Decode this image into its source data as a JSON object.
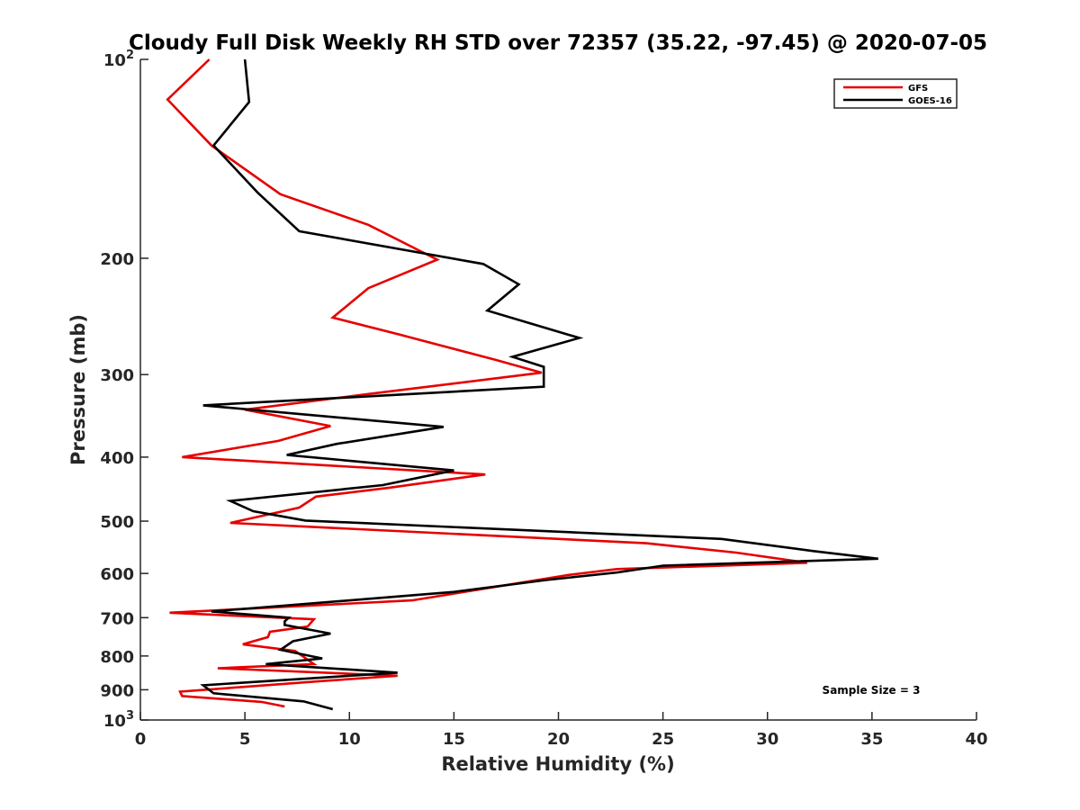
{
  "chart_data": {
    "type": "line",
    "title": "Cloudy Full Disk Weekly RH STD over 72357 (35.22, -97.45) @ 2020-07-05",
    "xlabel": "Relative Humidity (%)",
    "ylabel": "Pressure (mb)",
    "xlim": [
      0,
      40
    ],
    "ylim": [
      100,
      1000
    ],
    "y_scale": "log",
    "y_reversed": true,
    "x_ticks": [
      0,
      5,
      10,
      15,
      20,
      25,
      30,
      35,
      40
    ],
    "y_ticks": [
      {
        "value": 100,
        "base": "10",
        "exp": "2"
      },
      {
        "value": 200,
        "label": "200"
      },
      {
        "value": 300,
        "label": "300"
      },
      {
        "value": 400,
        "label": "400"
      },
      {
        "value": 500,
        "label": "500"
      },
      {
        "value": 600,
        "label": "600"
      },
      {
        "value": 700,
        "label": "700"
      },
      {
        "value": 800,
        "label": "800"
      },
      {
        "value": 900,
        "label": "900"
      },
      {
        "value": 1000,
        "base": "10",
        "exp": "3"
      }
    ],
    "grid": false,
    "legend": "top-right",
    "annotation": "Sample Size = 3",
    "series": [
      {
        "name": "GFS",
        "color": "#e60000",
        "points": [
          [
            3.3,
            100
          ],
          [
            1.3,
            115
          ],
          [
            3.4,
            135
          ],
          [
            6.7,
            160
          ],
          [
            10.9,
            178
          ],
          [
            14.2,
            201
          ],
          [
            10.9,
            222
          ],
          [
            9.2,
            246
          ],
          [
            12.4,
            261
          ],
          [
            17,
            285
          ],
          [
            19.2,
            298
          ],
          [
            10.9,
            321
          ],
          [
            5,
            339
          ],
          [
            9.1,
            359
          ],
          [
            6.6,
            378
          ],
          [
            2,
            400
          ],
          [
            16.5,
            425
          ],
          [
            11.9,
            445
          ],
          [
            8.4,
            459
          ],
          [
            7.6,
            477
          ],
          [
            4.3,
            503
          ],
          [
            24.2,
            540
          ],
          [
            28.5,
            558
          ],
          [
            31.9,
            578
          ],
          [
            22.8,
            591
          ],
          [
            20.5,
            603
          ],
          [
            13,
            659
          ],
          [
            1.4,
            688
          ],
          [
            8.3,
            704
          ],
          [
            8,
            722
          ],
          [
            6.2,
            735
          ],
          [
            6.1,
            749
          ],
          [
            4.9,
            768
          ],
          [
            7.4,
            786
          ],
          [
            8.3,
            823
          ],
          [
            3.7,
            835
          ],
          [
            12.3,
            857
          ],
          [
            8.7,
            873
          ],
          [
            1.9,
            906
          ],
          [
            2,
            920
          ],
          [
            5.8,
            939
          ],
          [
            6.9,
            954
          ]
        ]
      },
      {
        "name": "GOES-16",
        "color": "#000000",
        "points": [
          [
            5,
            100
          ],
          [
            5.2,
            116
          ],
          [
            3.5,
            135
          ],
          [
            5.6,
            159
          ],
          [
            7.6,
            182
          ],
          [
            16.4,
            204
          ],
          [
            18.1,
            219
          ],
          [
            16.6,
            240
          ],
          [
            21,
            264
          ],
          [
            17.8,
            282
          ],
          [
            19.3,
            292
          ],
          [
            19.3,
            313
          ],
          [
            3,
            334
          ],
          [
            14.5,
            360
          ],
          [
            9.4,
            382
          ],
          [
            7,
            397
          ],
          [
            15,
            419
          ],
          [
            11.6,
            441
          ],
          [
            4.3,
            466
          ],
          [
            5.4,
            483
          ],
          [
            7.9,
            499
          ],
          [
            27.8,
            532
          ],
          [
            32.2,
            555
          ],
          [
            35.3,
            570
          ],
          [
            25,
            584
          ],
          [
            22.8,
            598
          ],
          [
            19.4,
            614
          ],
          [
            15,
            640
          ],
          [
            3.4,
            685
          ],
          [
            7.1,
            700
          ],
          [
            6.9,
            709
          ],
          [
            6.9,
            718
          ],
          [
            9.1,
            740
          ],
          [
            7.3,
            760
          ],
          [
            6.7,
            783
          ],
          [
            8.7,
            807
          ],
          [
            6,
            823
          ],
          [
            12.3,
            848
          ],
          [
            3,
            886
          ],
          [
            3.5,
            911
          ],
          [
            7.8,
            937
          ],
          [
            9.2,
            963
          ]
        ]
      }
    ]
  }
}
